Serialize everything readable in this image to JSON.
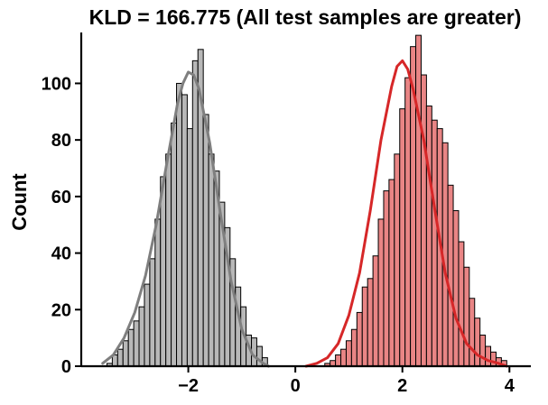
{
  "chart_data": {
    "type": "bar",
    "title": "KLD = 166.775 (All test samples are greater)",
    "xlabel": "",
    "ylabel": "Count",
    "xlim": [
      -4.0,
      4.4
    ],
    "ylim": [
      0,
      118
    ],
    "xticks": [
      {
        "value": -2,
        "label": "−2"
      },
      {
        "value": 0,
        "label": "0"
      },
      {
        "value": 2,
        "label": "2"
      },
      {
        "value": 4,
        "label": "4"
      }
    ],
    "yticks": [
      {
        "value": 0,
        "label": "0"
      },
      {
        "value": 20,
        "label": "20"
      },
      {
        "value": 40,
        "label": "40"
      },
      {
        "value": 60,
        "label": "60"
      },
      {
        "value": 80,
        "label": "80"
      },
      {
        "value": 100,
        "label": "100"
      }
    ],
    "grid": false,
    "legend": "none",
    "series": [
      {
        "color": "#b8b8b8",
        "kde_color": "#7f7f7f",
        "bin_start": -3.52,
        "bin_width": 0.1,
        "values": [
          1,
          4,
          6,
          9,
          13,
          16,
          21,
          29,
          38,
          52,
          67,
          75,
          86,
          100,
          96,
          84,
          108,
          112,
          89,
          75,
          69,
          58,
          49,
          38,
          28,
          21,
          11,
          10,
          7,
          3
        ],
        "kde": {
          "x": [
            -3.6,
            -3.4,
            -3.2,
            -3.0,
            -2.8,
            -2.6,
            -2.4,
            -2.2,
            -2.1,
            -2.0,
            -1.9,
            -1.8,
            -1.6,
            -1.4,
            -1.2,
            -1.0,
            -0.8,
            -0.6,
            -0.5
          ],
          "y": [
            1,
            4,
            10,
            19,
            32,
            50,
            72,
            93,
            100,
            104,
            103,
            98,
            79,
            54,
            30,
            13,
            4,
            1,
            0
          ]
        }
      },
      {
        "color": "#e98585",
        "kde_color": "#d62728",
        "bin_start": 0.55,
        "bin_width": 0.1,
        "values": [
          1,
          2,
          4,
          6,
          9,
          13,
          19,
          28,
          31,
          39,
          52,
          62,
          66,
          75,
          91,
          102,
          113,
          117,
          103,
          92,
          87,
          84,
          79,
          64,
          55,
          44,
          35,
          24,
          17,
          11,
          7,
          5,
          3,
          2
        ],
        "kde": {
          "x": [
            0.2,
            0.4,
            0.6,
            0.8,
            1.0,
            1.2,
            1.4,
            1.6,
            1.8,
            1.9,
            2.0,
            2.1,
            2.2,
            2.4,
            2.6,
            2.8,
            3.0,
            3.2,
            3.4,
            3.6,
            3.8,
            3.95
          ],
          "y": [
            0,
            1,
            3,
            8,
            18,
            33,
            55,
            80,
            99,
            106,
            108,
            105,
            98,
            80,
            56,
            33,
            17,
            8,
            4,
            2,
            1,
            0
          ]
        }
      }
    ]
  }
}
